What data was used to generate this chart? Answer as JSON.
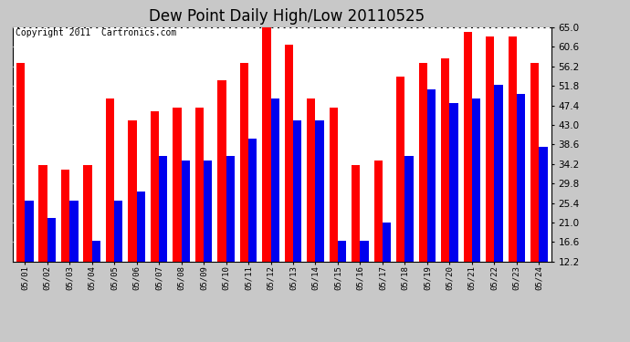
{
  "title": "Dew Point Daily High/Low 20110525",
  "copyright": "Copyright 2011  Cartronics.com",
  "dates": [
    "05/01",
    "05/02",
    "05/03",
    "05/04",
    "05/05",
    "05/06",
    "05/07",
    "05/08",
    "05/09",
    "05/10",
    "05/11",
    "05/12",
    "05/13",
    "05/14",
    "05/15",
    "05/16",
    "05/17",
    "05/18",
    "05/19",
    "05/20",
    "05/21",
    "05/22",
    "05/23",
    "05/24"
  ],
  "highs": [
    57.0,
    34.0,
    33.0,
    34.0,
    49.0,
    44.0,
    46.0,
    47.0,
    47.0,
    53.0,
    57.0,
    65.0,
    61.0,
    49.0,
    47.0,
    34.0,
    35.0,
    54.0,
    57.0,
    58.0,
    64.0,
    63.0,
    63.0,
    57.0
  ],
  "lows": [
    26.0,
    22.0,
    26.0,
    17.0,
    26.0,
    28.0,
    36.0,
    35.0,
    35.0,
    36.0,
    40.0,
    49.0,
    44.0,
    44.0,
    17.0,
    17.0,
    21.0,
    36.0,
    51.0,
    48.0,
    49.0,
    52.0,
    50.0,
    38.0
  ],
  "high_color": "#ff0000",
  "low_color": "#0000ee",
  "background_color": "#c8c8c8",
  "plot_background": "#ffffff",
  "ymin": 12.2,
  "ymax": 65.0,
  "yticks": [
    12.2,
    16.6,
    21.0,
    25.4,
    29.8,
    34.2,
    38.6,
    43.0,
    47.4,
    51.8,
    56.2,
    60.6,
    65.0
  ],
  "grid_color": "#b0b0b0",
  "title_fontsize": 12,
  "copyright_fontsize": 7
}
